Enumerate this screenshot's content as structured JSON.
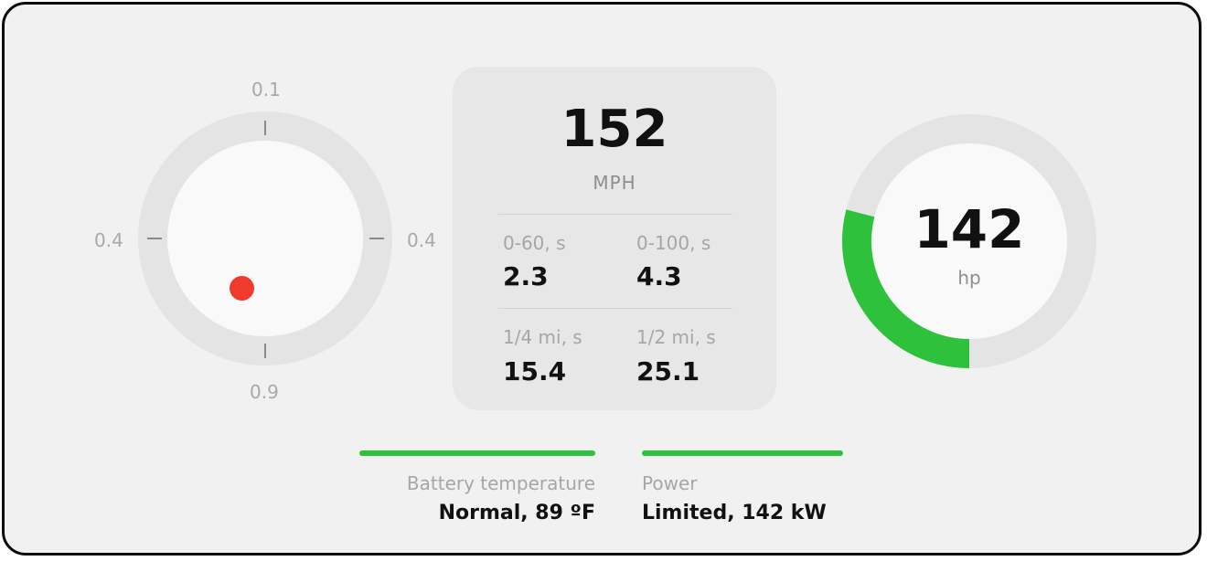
{
  "colors": {
    "panel_background": "#f1f1f1",
    "card_background": "#e7e7e7",
    "accent_green": "#2ec23c",
    "indicator_red": "#f03a2e",
    "track_gray": "#e4e4e4"
  },
  "gforce": {
    "top_label": "0.1",
    "left_label": "0.4",
    "right_label": "0.4",
    "bottom_label": "0.9",
    "indicator": "g-force-dot"
  },
  "stats": {
    "speed_value": "152",
    "speed_unit": "MPH",
    "metrics": [
      {
        "label": "0-60, s",
        "value": "2.3"
      },
      {
        "label": "0-100, s",
        "value": "4.3"
      },
      {
        "label": "1/4 mi, s",
        "value": "15.4"
      },
      {
        "label": "1/2 mi, s",
        "value": "25.1"
      }
    ]
  },
  "power_gauge": {
    "value": "142",
    "unit": "hp",
    "fill_fraction": 0.29
  },
  "status": {
    "battery": {
      "label": "Battery temperature",
      "value": "Normal, 89 ºF"
    },
    "power": {
      "label": "Power",
      "value": "Limited, 142 kW"
    }
  }
}
